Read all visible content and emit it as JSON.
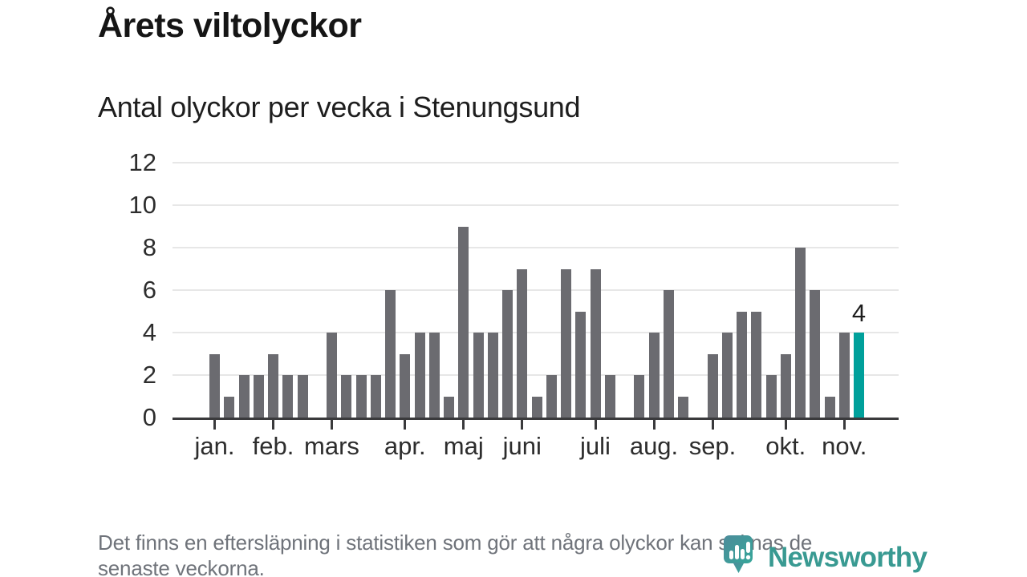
{
  "header": {
    "title": "Årets viltolyckor",
    "subtitle": "Antal olyckor per vecka i Stenungsund"
  },
  "chart_data": {
    "type": "bar",
    "title": "Årets viltolyckor",
    "subtitle": "Antal olyckor per vecka i Stenungsund",
    "x_unit": "vecka",
    "weeks": [
      1,
      2,
      3,
      4,
      5,
      6,
      7,
      8,
      9,
      10,
      11,
      12,
      13,
      14,
      15,
      16,
      17,
      18,
      19,
      20,
      21,
      22,
      23,
      24,
      25,
      26,
      27,
      28,
      29,
      30,
      31,
      32,
      33,
      34,
      35,
      36,
      37,
      38,
      39,
      40,
      41,
      42,
      43,
      44,
      45
    ],
    "values": [
      3,
      1,
      2,
      2,
      3,
      2,
      2,
      0,
      4,
      2,
      2,
      2,
      6,
      3,
      4,
      4,
      1,
      9,
      4,
      4,
      6,
      7,
      1,
      2,
      7,
      5,
      7,
      2,
      0,
      2,
      4,
      6,
      1,
      0,
      3,
      4,
      5,
      5,
      2,
      3,
      8,
      6,
      1,
      4,
      4
    ],
    "highlight_index": 44,
    "highlight_label": "4",
    "months": [
      {
        "label": "jan.",
        "week": 1
      },
      {
        "label": "feb.",
        "week": 5
      },
      {
        "label": "mars",
        "week": 9
      },
      {
        "label": "apr.",
        "week": 14
      },
      {
        "label": "maj",
        "week": 18
      },
      {
        "label": "juni",
        "week": 22
      },
      {
        "label": "juli",
        "week": 27
      },
      {
        "label": "aug.",
        "week": 31
      },
      {
        "label": "sep.",
        "week": 35
      },
      {
        "label": "okt.",
        "week": 40
      },
      {
        "label": "nov.",
        "week": 44
      }
    ],
    "y_ticks": [
      0,
      2,
      4,
      6,
      8,
      10,
      12
    ],
    "ylim": [
      0,
      12
    ],
    "grid": "horizontal",
    "legend": "none",
    "colors": {
      "bar": "#6b6b70",
      "highlight": "#00a09b",
      "axis": "#3a3a3c",
      "gridline": "#e7e7e7",
      "tick_label": "#2d2d2d"
    }
  },
  "footer": {
    "line1": "Det finns en eftersläpning i statistiken som gör att några olyckor kan saknas de",
    "line2": "senaste veckorna."
  },
  "logo": {
    "wordmark": "Newsworthy",
    "color": "#399a92"
  }
}
